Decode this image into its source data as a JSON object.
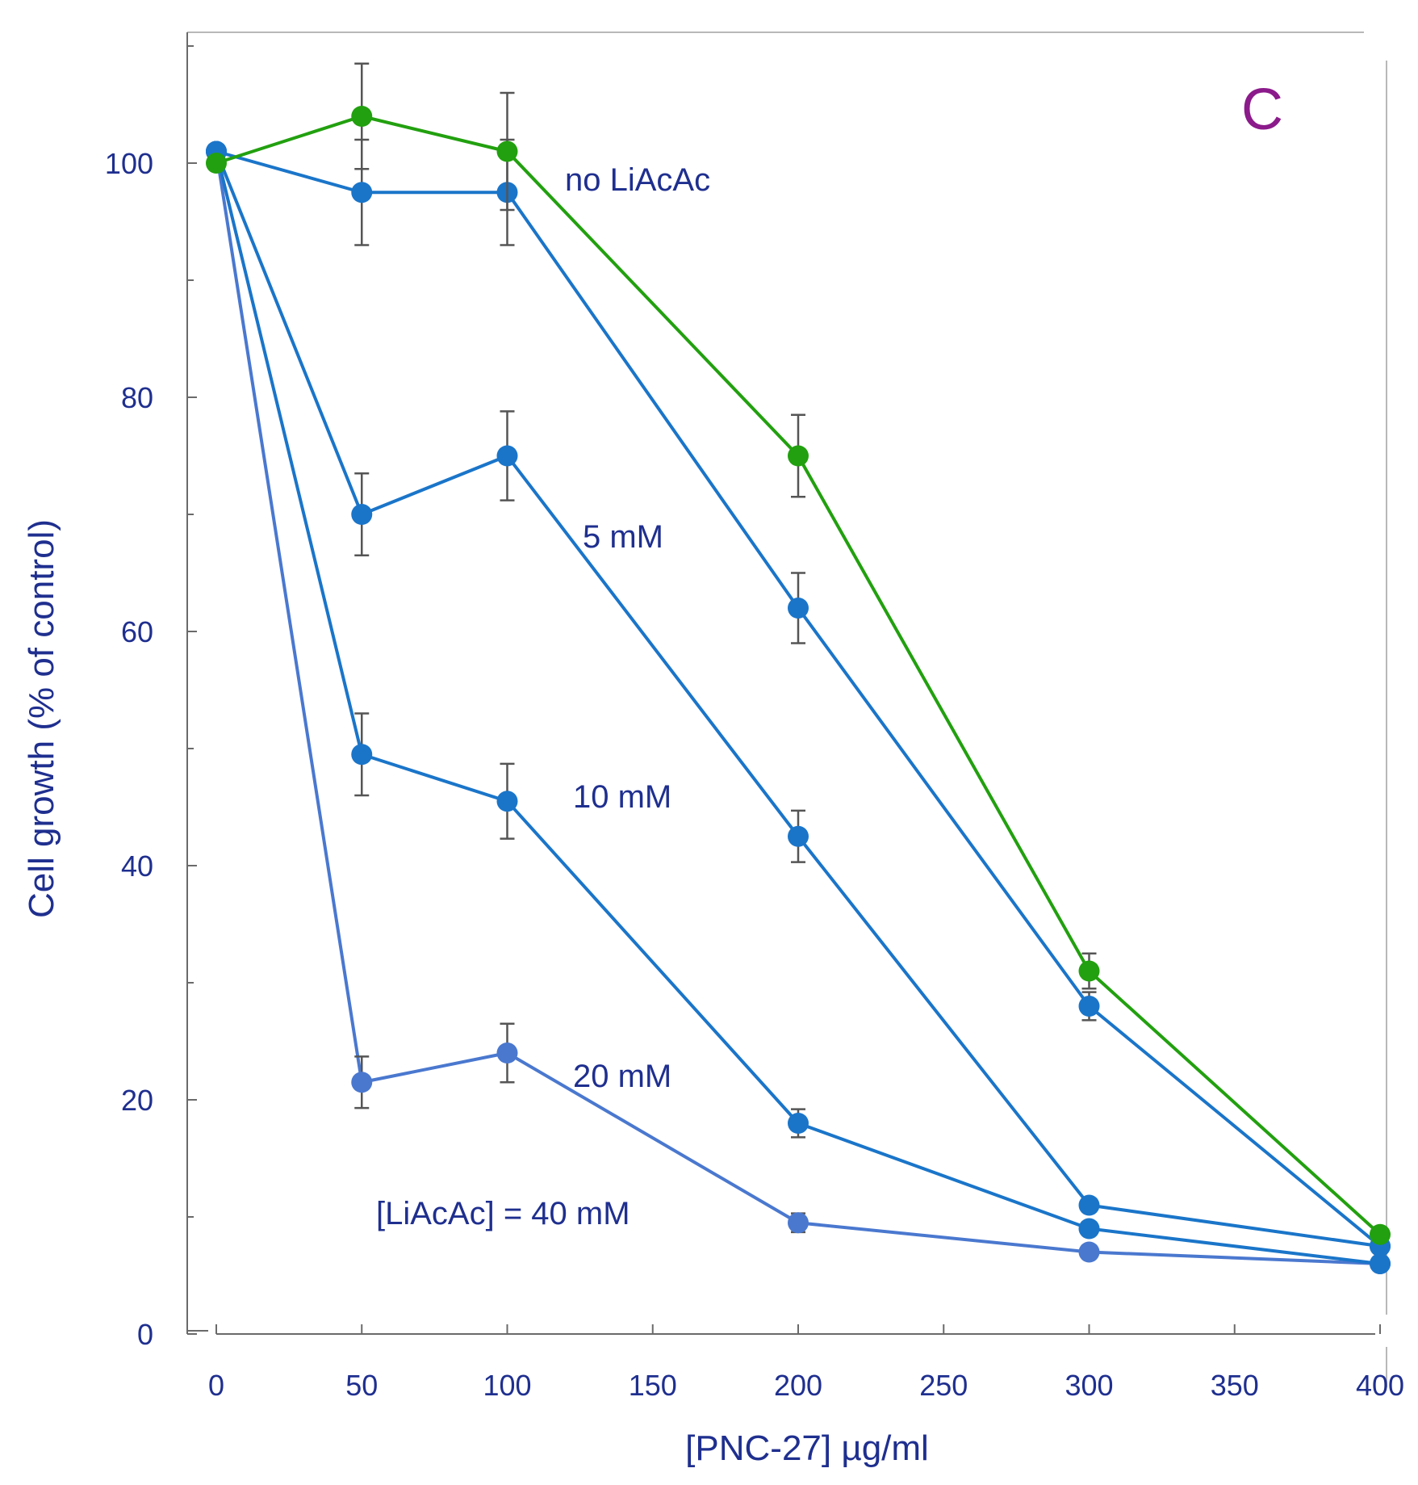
{
  "chart_data": {
    "type": "line",
    "panel_label": "C",
    "title": "",
    "xlabel": "[PNC-27]  µg/ml",
    "ylabel": "Cell growth (% of control)",
    "xlim": [
      -10,
      405
    ],
    "ylim": [
      0,
      112
    ],
    "x_ticks": [
      0,
      50,
      100,
      150,
      200,
      250,
      300,
      350,
      400
    ],
    "y_ticks": [
      0,
      20,
      40,
      60,
      80,
      100
    ],
    "grid": false,
    "error_bar_color": "#555555",
    "series": [
      {
        "name": "no LiAcAc",
        "label_text": "no LiAcAc",
        "color": "#22a00f",
        "x": [
          0,
          50,
          100,
          200,
          300,
          400
        ],
        "y": [
          100,
          104,
          101,
          75,
          31,
          8.5
        ],
        "err": [
          0,
          4.5,
          5,
          3.5,
          1.5,
          0
        ]
      },
      {
        "name": "5 mM",
        "label_text": "5 mM",
        "color": "#1a75c9",
        "x": [
          0,
          50,
          100,
          200,
          300,
          400
        ],
        "y": [
          101,
          97.5,
          97.5,
          62,
          28,
          7.5
        ],
        "err": [
          0,
          4.5,
          4.5,
          3,
          1.2,
          0
        ]
      },
      {
        "name": "10 mM",
        "label_text": "10 mM",
        "color": "#1a75c9",
        "x": [
          0,
          50,
          100,
          200,
          300,
          400
        ],
        "y": [
          101,
          70,
          75,
          42.5,
          11,
          7.5
        ],
        "err": [
          0,
          3.5,
          3.8,
          2.2,
          0,
          0
        ]
      },
      {
        "name": "20 mM",
        "label_text": "20 mM",
        "color": "#1a75c9",
        "x": [
          0,
          50,
          100,
          200,
          300,
          400
        ],
        "y": [
          101,
          49.5,
          45.5,
          18,
          9,
          6
        ],
        "err": [
          0,
          3.5,
          3.2,
          1.2,
          0,
          0
        ]
      },
      {
        "name": "40 mM",
        "label_text": "[LiAcAc] = 40 mM",
        "color": "#4a78cf",
        "x": [
          0,
          50,
          100,
          200,
          300,
          400
        ],
        "y": [
          101,
          21.5,
          24,
          9.5,
          7,
          6
        ],
        "err": [
          0,
          2.2,
          2.5,
          0.8,
          0,
          0
        ]
      }
    ]
  }
}
